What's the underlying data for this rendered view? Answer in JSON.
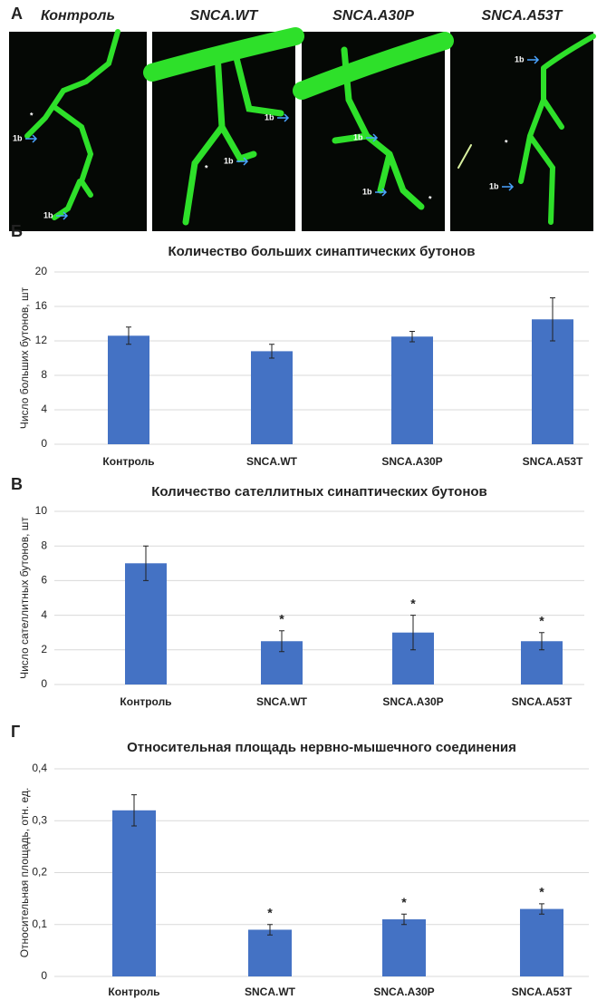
{
  "images": {
    "panel_label": "A",
    "items": [
      {
        "title": "Контроль",
        "annotations": [
          "*",
          "1b",
          "1b"
        ]
      },
      {
        "title": "SNCA.WT",
        "annotations": [
          "1b",
          "1b",
          "*"
        ]
      },
      {
        "title": "SNCA.A30P",
        "annotations": [
          "1b",
          "1b",
          "*"
        ]
      },
      {
        "title": "SNCA.A53T",
        "annotations": [
          "1b",
          "*",
          "1b"
        ]
      }
    ]
  },
  "chart_data": [
    {
      "type": "bar",
      "panel_label": "Б",
      "title": "Количество больших синаптических бутонов",
      "y_label": "Число больших бутонов, шт",
      "categories": [
        "Контроль",
        "SNCA.WT",
        "SNCA.A30P",
        "SNCA.A53T"
      ],
      "values": [
        12.6,
        10.8,
        12.5,
        14.5
      ],
      "errors": [
        1.0,
        0.8,
        0.6,
        2.5
      ],
      "markers": [
        null,
        null,
        null,
        null
      ],
      "color": "#4472c4",
      "ylim": [
        0,
        20
      ],
      "yticks": [
        0,
        4,
        8,
        12,
        16,
        20
      ],
      "grid": true
    },
    {
      "type": "bar",
      "panel_label": "В",
      "title": "Количество сателлитных синаптических бутонов",
      "y_label": "Число сателлитных бутонов, шт",
      "categories": [
        "Контроль",
        "SNCA.WT",
        "SNCA.A30P",
        "SNCA.A53T"
      ],
      "values": [
        7,
        2.5,
        3,
        2.5
      ],
      "errors": [
        1,
        0.6,
        1,
        0.5
      ],
      "markers": [
        null,
        "*",
        "*",
        "*"
      ],
      "color": "#4472c4",
      "ylim": [
        0,
        10
      ],
      "yticks": [
        0,
        2,
        4,
        6,
        8,
        10
      ],
      "grid": true
    },
    {
      "type": "bar",
      "panel_label": "Г",
      "title": "Относительная площадь нервно-мышечного соединения",
      "y_label": "Относительная площадь, отн. ед.",
      "categories": [
        "Контроль",
        "SNCA.WT",
        "SNCA.A30P",
        "SNCA.A53T"
      ],
      "values": [
        0.32,
        0.09,
        0.11,
        0.13
      ],
      "errors": [
        0.03,
        0.01,
        0.01,
        0.01
      ],
      "markers": [
        null,
        "*",
        "*",
        "*"
      ],
      "color": "#4472c4",
      "ylim": [
        0,
        0.4
      ],
      "yticks": [
        0,
        {
          "value": 0.1,
          "label": "0,1"
        },
        {
          "value": 0.2,
          "label": "0,2"
        },
        {
          "value": 0.3,
          "label": "0,3"
        },
        {
          "value": 0.4,
          "label": "0,4"
        }
      ],
      "grid": true
    }
  ]
}
